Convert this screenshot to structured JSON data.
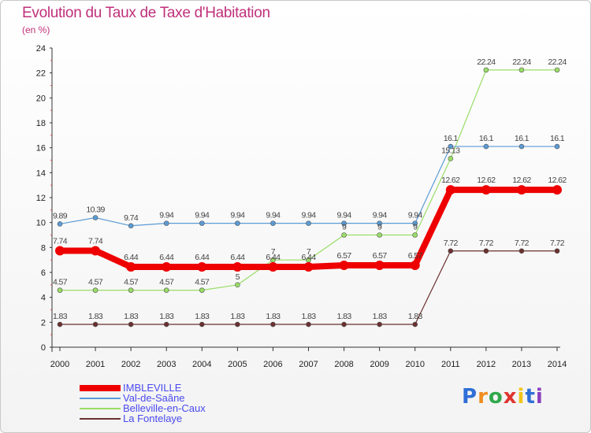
{
  "title": "Evolution du Taux de Taxe d'Habitation",
  "unit": "(en %)",
  "logo": "Proxiti",
  "chart_data": {
    "type": "line",
    "x": [
      "2000",
      "2001",
      "2002",
      "2003",
      "2004",
      "2005",
      "2006",
      "2007",
      "2008",
      "2009",
      "2010",
      "2011",
      "2012",
      "2013",
      "2014"
    ],
    "ylim": [
      0,
      24
    ],
    "yticks": [
      0,
      2,
      4,
      6,
      8,
      10,
      12,
      14,
      16,
      18,
      20,
      22,
      24
    ],
    "grid": false,
    "legend_position": "bottom-left",
    "series": [
      {
        "name": "IMBLEVILLE",
        "color": "#ee0000",
        "values": [
          7.74,
          7.74,
          6.44,
          6.44,
          6.44,
          6.44,
          6.44,
          6.44,
          6.57,
          6.57,
          6.57,
          12.62,
          12.62,
          12.62,
          12.62
        ],
        "labels": [
          "7.74",
          "7.74",
          "6.44",
          "6.44",
          "6.44",
          "6.44",
          "6.44",
          "6.44",
          "6.57",
          "6.57",
          "6.57",
          "12.62",
          "12.62",
          "12.62",
          "12.62"
        ]
      },
      {
        "name": "Val-de-Saâne",
        "color": "#5b9bd5",
        "values": [
          9.89,
          10.39,
          9.74,
          9.94,
          9.94,
          9.94,
          9.94,
          9.94,
          9.94,
          9.94,
          9.94,
          16.1,
          16.1,
          16.1,
          16.1
        ],
        "labels": [
          "9.89",
          "10.39",
          "9.74",
          "9.94",
          "9.94",
          "9.94",
          "9.94",
          "9.94",
          "9.94",
          "9.94",
          "9.94",
          "16.1",
          "16.1",
          "16.1",
          "16.1"
        ]
      },
      {
        "name": "Belleville-en-Caux",
        "color": "#99dd66",
        "values": [
          4.57,
          4.57,
          4.57,
          4.57,
          4.57,
          5,
          7,
          7,
          9,
          9,
          9,
          15.13,
          22.24,
          22.24,
          22.24
        ],
        "labels": [
          "4.57",
          "4.57",
          "4.57",
          "4.57",
          "4.57",
          "5",
          "7",
          "7",
          "9",
          "9",
          "9",
          "15.13",
          "22.24",
          "22.24",
          "22.24"
        ]
      },
      {
        "name": "La Fontelaye",
        "color": "#6b2f2f",
        "values": [
          1.83,
          1.83,
          1.83,
          1.83,
          1.83,
          1.83,
          1.83,
          1.83,
          1.83,
          1.83,
          1.83,
          7.72,
          7.72,
          7.72,
          7.72
        ],
        "labels": [
          "1.83",
          "1.83",
          "1.83",
          "1.83",
          "1.83",
          "1.83",
          "1.83",
          "1.83",
          "1.83",
          "1.83",
          "1.83",
          "7.72",
          "7.72",
          "7.72",
          "7.72"
        ]
      }
    ]
  }
}
